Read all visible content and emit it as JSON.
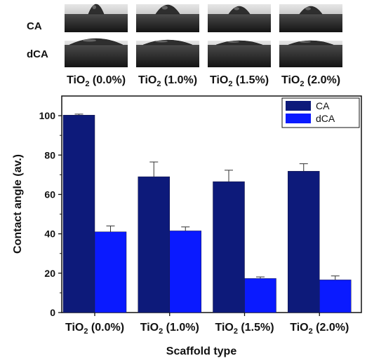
{
  "images": {
    "row_labels": [
      "CA",
      "dCA"
    ],
    "column_labels": [
      {
        "base": "TiO",
        "sub": "2",
        "rest": " (0.0%)"
      },
      {
        "base": "TiO",
        "sub": "2",
        "rest": " (1.0%)"
      },
      {
        "base": "TiO",
        "sub": "2",
        "rest": " (1.5%)"
      },
      {
        "base": "TiO",
        "sub": "2",
        "rest": " (2.0%)"
      }
    ]
  },
  "chart_data": {
    "type": "bar",
    "categories": [
      {
        "base": "TiO",
        "sub": "2",
        "rest": " (0.0%)"
      },
      {
        "base": "TiO",
        "sub": "2",
        "rest": " (1.0%)"
      },
      {
        "base": "TiO",
        "sub": "2",
        "rest": " (1.5%)"
      },
      {
        "base": "TiO",
        "sub": "2",
        "rest": " (2.0%)"
      }
    ],
    "series": [
      {
        "name": "CA",
        "color": "#0d1a7a",
        "values": [
          100.3,
          69.0,
          66.5,
          71.8
        ],
        "errors": [
          0.5,
          7.5,
          5.8,
          3.8
        ]
      },
      {
        "name": "dCA",
        "color": "#0a1aff",
        "values": [
          41.0,
          41.5,
          17.3,
          16.6
        ],
        "errors": [
          3.0,
          2.0,
          0.8,
          2.0
        ]
      }
    ],
    "xlabel": "Scaffold type",
    "ylabel": "Contact angle (av.)",
    "ylim": [
      0,
      110
    ],
    "yticks": [
      0,
      20,
      40,
      60,
      80,
      100
    ],
    "legend_position": "top-right",
    "grid": false
  }
}
